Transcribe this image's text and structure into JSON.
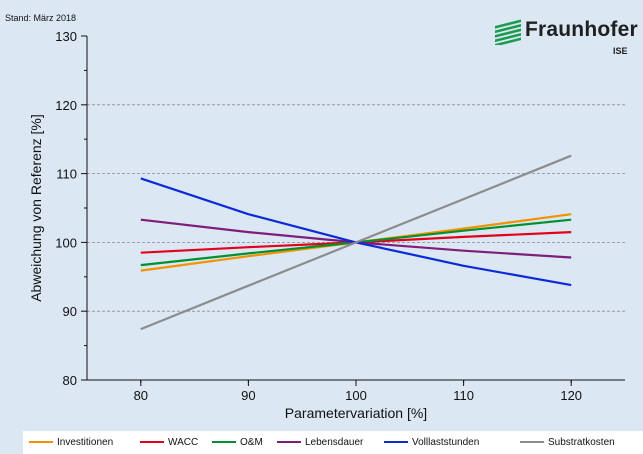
{
  "stand_label": "Stand: März 2018",
  "logo": {
    "name": "Fraunhofer",
    "sub": "ISE",
    "color": "#1a9b4d"
  },
  "chart_data": {
    "type": "line",
    "xlabel": "Parametervariation [%]",
    "ylabel": "Abweichung von Referenz [%]",
    "xlim": [
      75,
      125
    ],
    "ylim": [
      80,
      130
    ],
    "xticks": [
      80,
      90,
      100,
      110,
      120
    ],
    "yticks": [
      80,
      90,
      100,
      110,
      120,
      130
    ],
    "grid": "dashed-horizontal",
    "legend_position": "bottom",
    "x": [
      80,
      90,
      100,
      110,
      120
    ],
    "series": [
      {
        "name": "Investitionen",
        "color": "#f39200",
        "values": [
          95.9,
          98.0,
          100.0,
          102.0,
          104.1
        ]
      },
      {
        "name": "WACC",
        "color": "#e3001b",
        "values": [
          98.5,
          99.3,
          100.0,
          100.8,
          101.5
        ]
      },
      {
        "name": "O&M",
        "color": "#00902f",
        "values": [
          96.7,
          98.4,
          100.0,
          101.7,
          103.3
        ]
      },
      {
        "name": "Lebensdauer",
        "color": "#7f1d7d",
        "values": [
          103.3,
          101.5,
          100.0,
          98.8,
          97.8
        ]
      },
      {
        "name": "Volllaststunden",
        "color": "#0d2ad9",
        "values": [
          109.3,
          104.1,
          100.0,
          96.6,
          93.8
        ]
      },
      {
        "name": "Substratkosten",
        "color": "#8c8c8c",
        "values": [
          87.4,
          93.7,
          100.0,
          106.3,
          112.6
        ]
      }
    ]
  }
}
